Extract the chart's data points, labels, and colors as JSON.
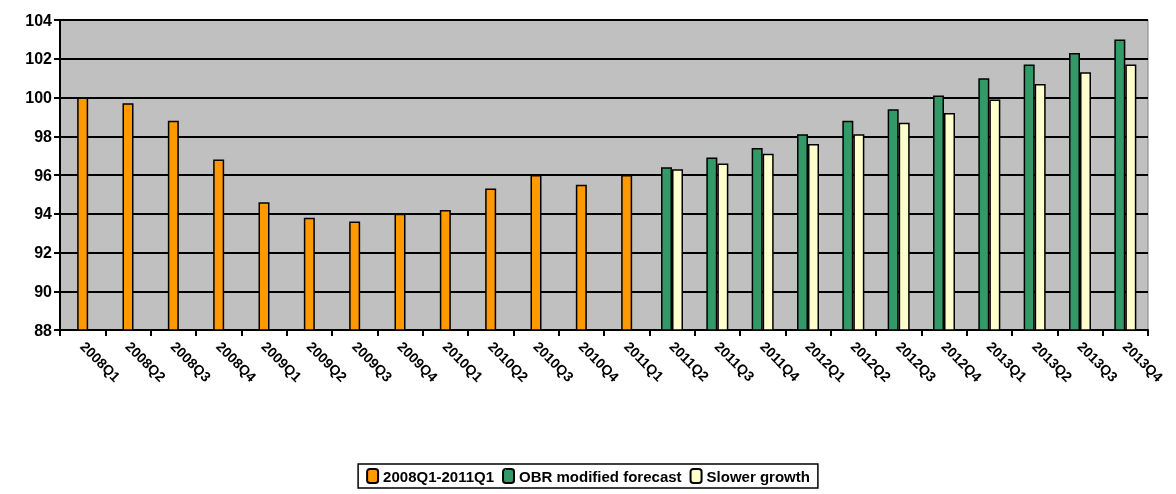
{
  "chart_data": {
    "type": "bar",
    "categories": [
      "2008Q1",
      "2008Q2",
      "2008Q3",
      "2008Q4",
      "2009Q1",
      "2009Q2",
      "2009Q3",
      "2009Q4",
      "2010Q1",
      "2010Q2",
      "2010Q3",
      "2010Q4",
      "2011Q1",
      "2011Q2",
      "2011Q3",
      "2011Q4",
      "2012Q1",
      "2012Q2",
      "2012Q3",
      "2012Q4",
      "2013Q1",
      "2013Q2",
      "2013Q3",
      "2013Q4"
    ],
    "series": [
      {
        "name": "2008Q1-2011Q1",
        "color": "#ff9900",
        "values": [
          100,
          99.7,
          98.8,
          96.8,
          94.6,
          93.8,
          93.6,
          94.0,
          94.2,
          95.3,
          96.0,
          95.5,
          96.0,
          null,
          null,
          null,
          null,
          null,
          null,
          null,
          null,
          null,
          null,
          null
        ]
      },
      {
        "name": "OBR modified forecast",
        "color": "#339966",
        "values": [
          null,
          null,
          null,
          null,
          null,
          null,
          null,
          null,
          null,
          null,
          null,
          null,
          null,
          96.4,
          96.9,
          97.4,
          98.1,
          98.8,
          99.4,
          100.1,
          101.0,
          101.7,
          102.3,
          103.0
        ]
      },
      {
        "name": "Slower growth",
        "color": "#ffffcc",
        "values": [
          null,
          null,
          null,
          null,
          null,
          null,
          null,
          null,
          null,
          null,
          null,
          null,
          null,
          96.3,
          96.6,
          97.1,
          97.6,
          98.1,
          98.7,
          99.2,
          99.9,
          100.7,
          101.3,
          101.7
        ]
      }
    ],
    "ylim": [
      88,
      104
    ],
    "yticks": [
      88,
      90,
      92,
      94,
      96,
      98,
      100,
      102,
      104
    ],
    "grid": "y",
    "legend": "bottom"
  }
}
